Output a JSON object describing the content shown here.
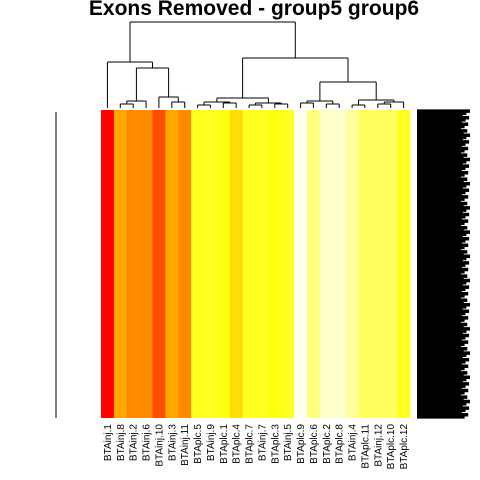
{
  "chart_data": {
    "type": "heatmap",
    "title": "Exons Removed -  group5 group6",
    "xlabel": "",
    "ylabel": "",
    "columns": [
      "BTAinj.1",
      "BTAinj.8",
      "BTAinj.2",
      "BTAinj.6",
      "BTAinj.10",
      "BTAinj.3",
      "BTAinj.11",
      "BTAplc.5",
      "BTAinj.9",
      "BTAplc.1",
      "BTAplc.4",
      "BTAplc.7",
      "BTAinj.7",
      "BTAplc.3",
      "BTAinj.5",
      "BTAplc.9",
      "BTAplc.6",
      "BTAplc.2",
      "BTAplc.8",
      "BTAinj.4",
      "BTAplc.11",
      "BTAinj.12",
      "BTAplc.10",
      "BTAplc.12"
    ],
    "values": [
      0.0,
      0.45,
      0.38,
      0.38,
      0.2,
      0.45,
      0.35,
      0.85,
      0.85,
      0.82,
      0.7,
      0.85,
      0.85,
      0.82,
      0.85,
      0.97,
      0.9,
      0.94,
      0.94,
      0.93,
      0.88,
      0.88,
      0.88,
      0.85
    ],
    "colors": [
      "#ff0000",
      "#ffa800",
      "#ff8c00",
      "#ff8c00",
      "#ff4d00",
      "#ffa800",
      "#ff8a00",
      "#ffff20",
      "#ffff20",
      "#ffff10",
      "#ffdd00",
      "#ffff20",
      "#ffff20",
      "#ffff10",
      "#ffff20",
      "#fffff0",
      "#ffff80",
      "#ffffc8",
      "#ffffd0",
      "#ffffa0",
      "#ffff60",
      "#ffff60",
      "#ffff60",
      "#ffff20"
    ],
    "row_count": 140,
    "colormap": "heat (red-yellow-white)",
    "grid": false,
    "legend": "none"
  }
}
